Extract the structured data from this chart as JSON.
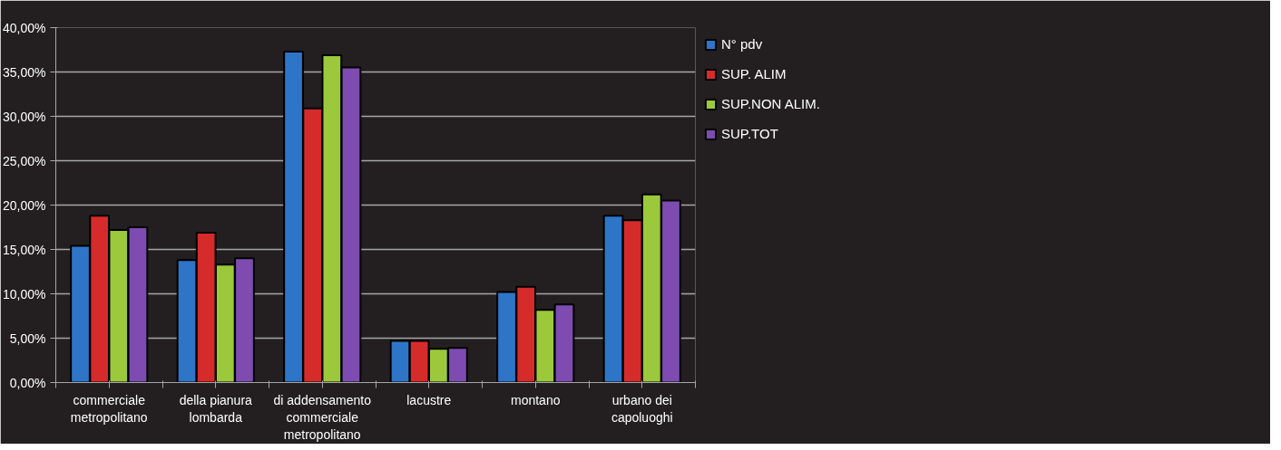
{
  "chart_data": {
    "type": "bar",
    "categories": [
      "commerciale metropolitano",
      "della pianura lombarda",
      "di addensamento commerciale metropolitano",
      "lacustre",
      "montano",
      "urbano dei capoluoghi"
    ],
    "series": [
      {
        "name": "N° pdv",
        "color": "#2e75c8",
        "values": [
          15.4,
          13.8,
          37.3,
          4.7,
          10.2,
          18.8
        ]
      },
      {
        "name": "SUP. ALIM",
        "color": "#d62b2b",
        "values": [
          18.8,
          16.9,
          30.9,
          4.7,
          10.8,
          18.3
        ]
      },
      {
        "name": "SUP.NON ALIM.",
        "color": "#9cc83c",
        "values": [
          17.2,
          13.3,
          36.9,
          3.8,
          8.2,
          21.2
        ]
      },
      {
        "name": "SUP.TOT",
        "color": "#7e4cb0",
        "values": [
          17.5,
          14.0,
          35.5,
          3.9,
          8.8,
          20.5
        ]
      }
    ],
    "ylim": [
      0,
      40
    ],
    "yticks": [
      {
        "value": 0,
        "label": "0,00%"
      },
      {
        "value": 5,
        "label": "5,00%"
      },
      {
        "value": 10,
        "label": "10,00%"
      },
      {
        "value": 15,
        "label": "15,00%"
      },
      {
        "value": 20,
        "label": "20,00%"
      },
      {
        "value": 25,
        "label": "25,00%"
      },
      {
        "value": 30,
        "label": "30,00%"
      },
      {
        "value": 35,
        "label": "35,00%"
      },
      {
        "value": 40,
        "label": "40,00%"
      }
    ],
    "grid": "y",
    "legend": "right"
  }
}
